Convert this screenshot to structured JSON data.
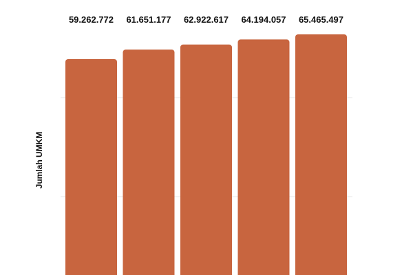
{
  "chart_data": {
    "type": "bar",
    "ylabel": "Jumlah UMKM",
    "values": [
      59262772,
      61651177,
      62922617,
      64194057,
      65465497
    ],
    "value_labels": [
      "59.262.772",
      "61.651.177",
      "62.922.617",
      "64.194.057",
      "65.465.497"
    ],
    "bar_color": "#c8653f",
    "grid": true
  }
}
